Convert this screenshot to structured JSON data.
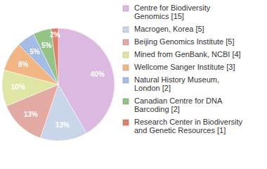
{
  "chart_data": {
    "type": "pie",
    "categories": [
      "Centre for Biodiversity Genomics [15]",
      "Macrogen, Korea [5]",
      "Beijing Genomics Institute [5]",
      "Mined from GenBank, NCBI [4]",
      "Wellcome Sanger Institute [3]",
      "Natural History Museum, London [2]",
      "Canadian Centre for DNA Barcoding [2]",
      "Research Center in Biodiversity and Genetic Resources [1]"
    ],
    "values": [
      40,
      13,
      13,
      10,
      8,
      5,
      5,
      2
    ],
    "value_labels": [
      "40%",
      "13%",
      "13%",
      "10%",
      "8%",
      "5%",
      "5%",
      "2%"
    ],
    "colors": [
      "#dcb9e0",
      "#c9d5e8",
      "#e2aaa2",
      "#dfe6a4",
      "#f2b685",
      "#a5bce4",
      "#93c485",
      "#e0806a"
    ],
    "data_labels": true,
    "legend": "right"
  }
}
